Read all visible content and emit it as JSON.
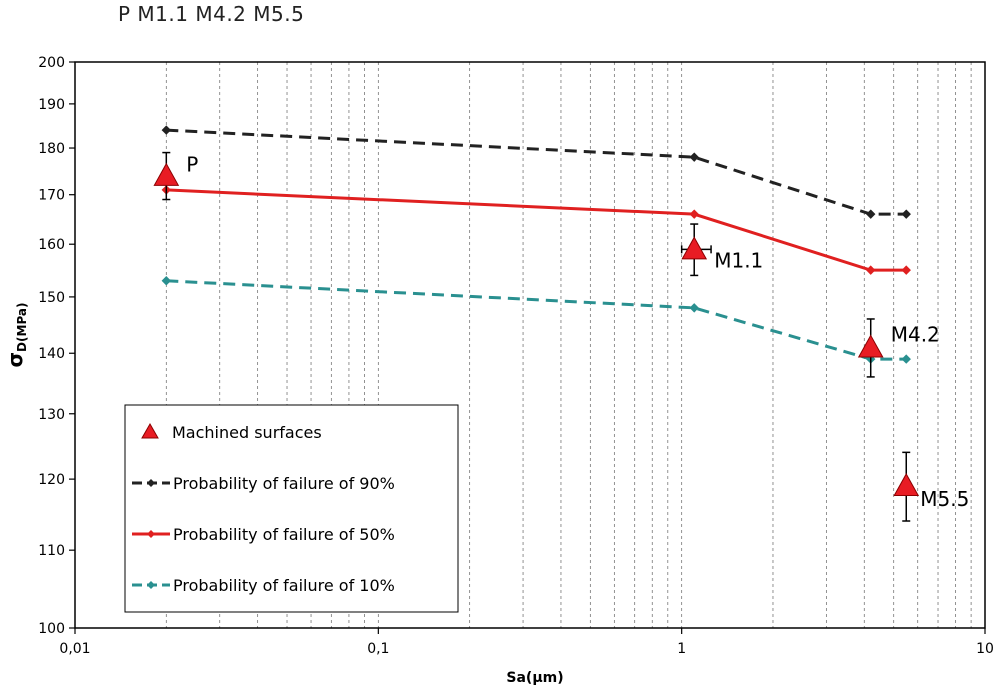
{
  "header": {
    "title": "P M1.1 M4.2 M5.5"
  },
  "chart_data": {
    "type": "line",
    "title": "P M1.1 M4.2 M5.5",
    "xlabel": "Sa(µm)",
    "ylabel": {
      "main": "σ",
      "sub": "D(MPa)"
    },
    "xscale": "log",
    "yscale": "log",
    "xlim": [
      0.01,
      10
    ],
    "ylim": [
      100,
      200
    ],
    "x_ticks": [
      {
        "value": 0.01,
        "label": "0,01"
      },
      {
        "value": 0.1,
        "label": "0,1"
      },
      {
        "value": 1,
        "label": "1"
      },
      {
        "value": 10,
        "label": "10"
      }
    ],
    "y_ticks": [
      100,
      110,
      120,
      130,
      140,
      150,
      160,
      170,
      180,
      190,
      200
    ],
    "grid": "vertical dashed minor and major gridlines",
    "legend_position": "bottom-left",
    "series": [
      {
        "name": "Probability of failure of 90%",
        "color": "#222222",
        "dashed": true,
        "marker": "diamond",
        "x": [
          0.02,
          1.1,
          4.2,
          5.5
        ],
        "y": [
          184,
          178,
          166,
          166
        ]
      },
      {
        "name": "Probability of failure of 50%",
        "color": "#e02020",
        "dashed": false,
        "marker": "diamond",
        "x": [
          0.02,
          1.1,
          4.2,
          5.5
        ],
        "y": [
          171,
          166,
          155,
          155
        ]
      },
      {
        "name": "Probability of failure of 10%",
        "color": "#2a9090",
        "dashed": true,
        "marker": "diamond",
        "x": [
          0.02,
          1.1,
          4.2,
          5.5
        ],
        "y": [
          153,
          148,
          139,
          139
        ]
      }
    ],
    "points": {
      "name": "Machined surfaces",
      "color": "#e81c24",
      "marker": "triangle",
      "data": [
        {
          "label": "P",
          "x": 0.02,
          "y": 174,
          "y_err": [
            169,
            179
          ]
        },
        {
          "label": "M1.1",
          "x": 1.1,
          "y": 159,
          "y_err": [
            154,
            164
          ],
          "x_err": [
            1.0,
            1.25
          ]
        },
        {
          "label": "M4.2",
          "x": 4.2,
          "y": 141,
          "y_err": [
            136,
            146
          ]
        },
        {
          "label": "M5.5",
          "x": 5.5,
          "y": 119,
          "y_err": [
            114,
            124
          ]
        }
      ]
    }
  }
}
